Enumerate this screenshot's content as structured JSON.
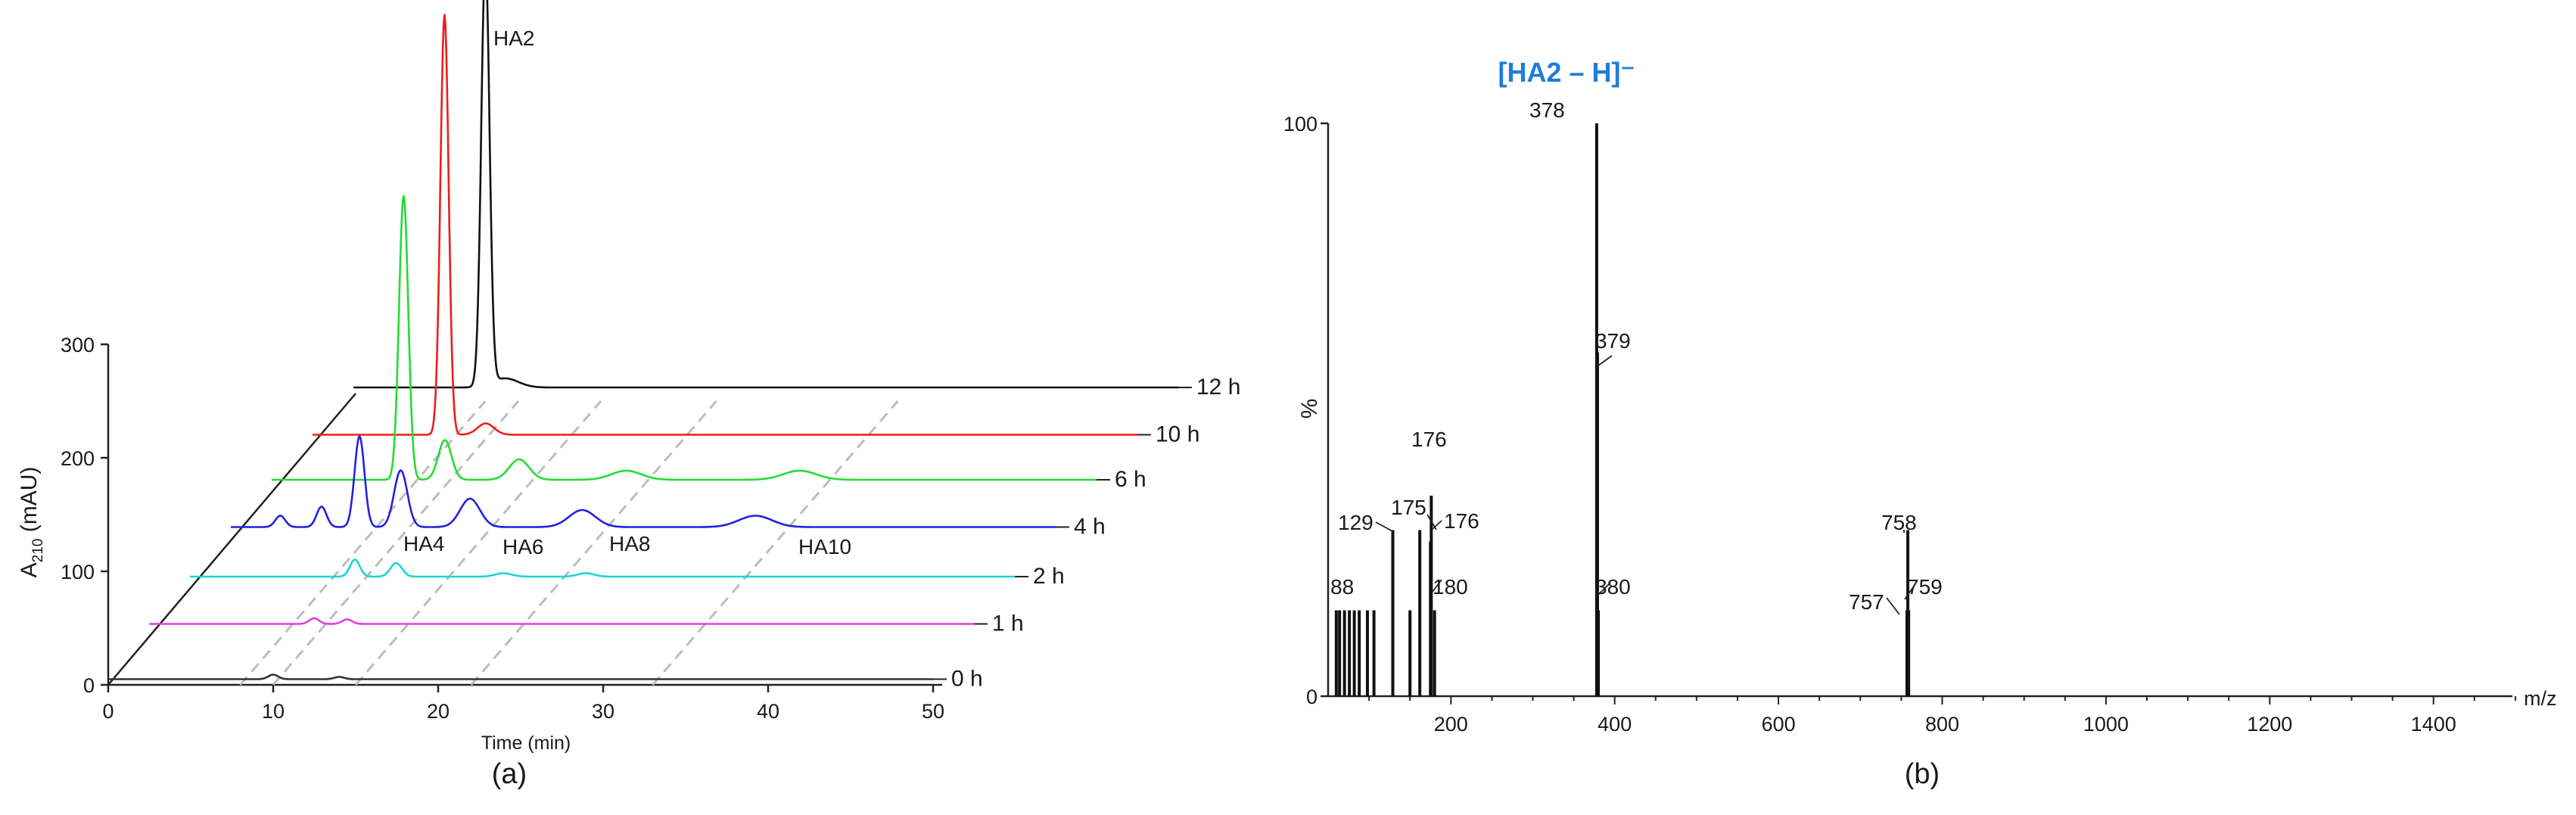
{
  "chart_data": [
    {
      "type": "line",
      "panel_label": "(a)",
      "xlabel": "Time (min)",
      "ylabel_main": "A",
      "ylabel_sub": "210",
      "ylabel_unit": " (mAU)",
      "xlim": [
        0,
        50
      ],
      "ylim": [
        0,
        300
      ],
      "x_ticks": [
        0,
        10,
        20,
        30,
        40,
        50
      ],
      "y_ticks": [
        0,
        100,
        200,
        300
      ],
      "guide_times": [
        8,
        10,
        15,
        22,
        33
      ],
      "series": [
        {
          "name": "0 h",
          "color": "#333333",
          "baseline": 5,
          "peaks": [
            [
              10,
              4,
              0.3
            ],
            [
              14,
              2,
              0.3
            ]
          ]
        },
        {
          "name": "1 h",
          "color": "#e040e0",
          "baseline": 12,
          "peaks": [
            [
              10,
              5,
              0.3
            ],
            [
              12,
              4,
              0.3
            ]
          ]
        },
        {
          "name": "2 h",
          "color": "#1ad6d6",
          "baseline": 12,
          "peaks": [
            [
              10,
              15,
              0.3
            ],
            [
              12.5,
              12,
              0.35
            ],
            [
              19,
              3,
              0.5
            ],
            [
              24,
              3,
              0.5
            ]
          ]
        },
        {
          "name": "4 h",
          "color": "#2222dd",
          "baseline": 14,
          "peaks": [
            [
              3,
              10,
              0.3
            ],
            [
              5.5,
              18,
              0.3
            ],
            [
              7.8,
              80,
              0.3
            ],
            [
              10.3,
              50,
              0.4
            ],
            [
              14.5,
              25,
              0.6
            ],
            [
              21.3,
              15,
              0.8
            ],
            [
              31.8,
              10,
              1.0
            ]
          ]
        },
        {
          "name": "6 h",
          "color": "#22dd33",
          "baseline": 14,
          "peaks": [
            [
              8,
              250,
              0.28
            ],
            [
              10.5,
              35,
              0.4
            ],
            [
              15,
              18,
              0.6
            ],
            [
              21.5,
              8,
              0.9
            ],
            [
              32,
              8,
              1.0
            ]
          ]
        },
        {
          "name": "10 h",
          "color": "#ee1c1c",
          "baseline": 12,
          "peaks": [
            [
              8,
              370,
              0.25
            ],
            [
              10.5,
              10,
              0.5
            ]
          ]
        },
        {
          "name": "12 h",
          "color": "#111111",
          "baseline": 12,
          "peaks": [
            [
              8,
              375,
              0.25
            ],
            [
              9.2,
              8,
              0.8
            ]
          ]
        }
      ],
      "annotations": [
        {
          "text": "HA2"
        },
        {
          "text": "HA4"
        },
        {
          "text": "HA6"
        },
        {
          "text": "HA8"
        },
        {
          "text": "HA10"
        }
      ]
    },
    {
      "type": "bar",
      "panel_label": "(b)",
      "title": "[HA2 – H]⁻",
      "title_color": "#1f7ed6",
      "xlabel": "m/z",
      "ylabel": "%",
      "xlim": [
        50,
        1500
      ],
      "ylim": [
        0,
        100
      ],
      "x_ticks": [
        200,
        400,
        600,
        800,
        1000,
        1200,
        1400
      ],
      "y_ticks": [
        0,
        100
      ],
      "peaks": [
        {
          "mz": 60,
          "intensity": 15
        },
        {
          "mz": 64,
          "intensity": 15
        },
        {
          "mz": 70,
          "intensity": 15
        },
        {
          "mz": 76,
          "intensity": 15
        },
        {
          "mz": 82,
          "intensity": 15
        },
        {
          "mz": 88,
          "intensity": 15
        },
        {
          "mz": 98,
          "intensity": 15
        },
        {
          "mz": 106,
          "intensity": 15
        },
        {
          "mz": 129,
          "intensity": 29
        },
        {
          "mz": 150,
          "intensity": 15
        },
        {
          "mz": 162,
          "intensity": 29
        },
        {
          "mz": 175,
          "intensity": 27
        },
        {
          "mz": 176,
          "intensity": 35
        },
        {
          "mz": 180,
          "intensity": 15
        },
        {
          "mz": 378,
          "intensity": 100
        },
        {
          "mz": 379,
          "intensity": 60
        },
        {
          "mz": 380,
          "intensity": 15
        },
        {
          "mz": 757,
          "intensity": 15
        },
        {
          "mz": 758,
          "intensity": 29
        },
        {
          "mz": 759,
          "intensity": 15
        }
      ],
      "peak_labels": [
        {
          "text": "88"
        },
        {
          "text": "129"
        },
        {
          "text": "176"
        },
        {
          "text": "175"
        },
        {
          "text": "176"
        },
        {
          "text": "180"
        },
        {
          "text": "378"
        },
        {
          "text": "379"
        },
        {
          "text": "380"
        },
        {
          "text": "757"
        },
        {
          "text": "758"
        },
        {
          "text": "759"
        }
      ]
    }
  ]
}
